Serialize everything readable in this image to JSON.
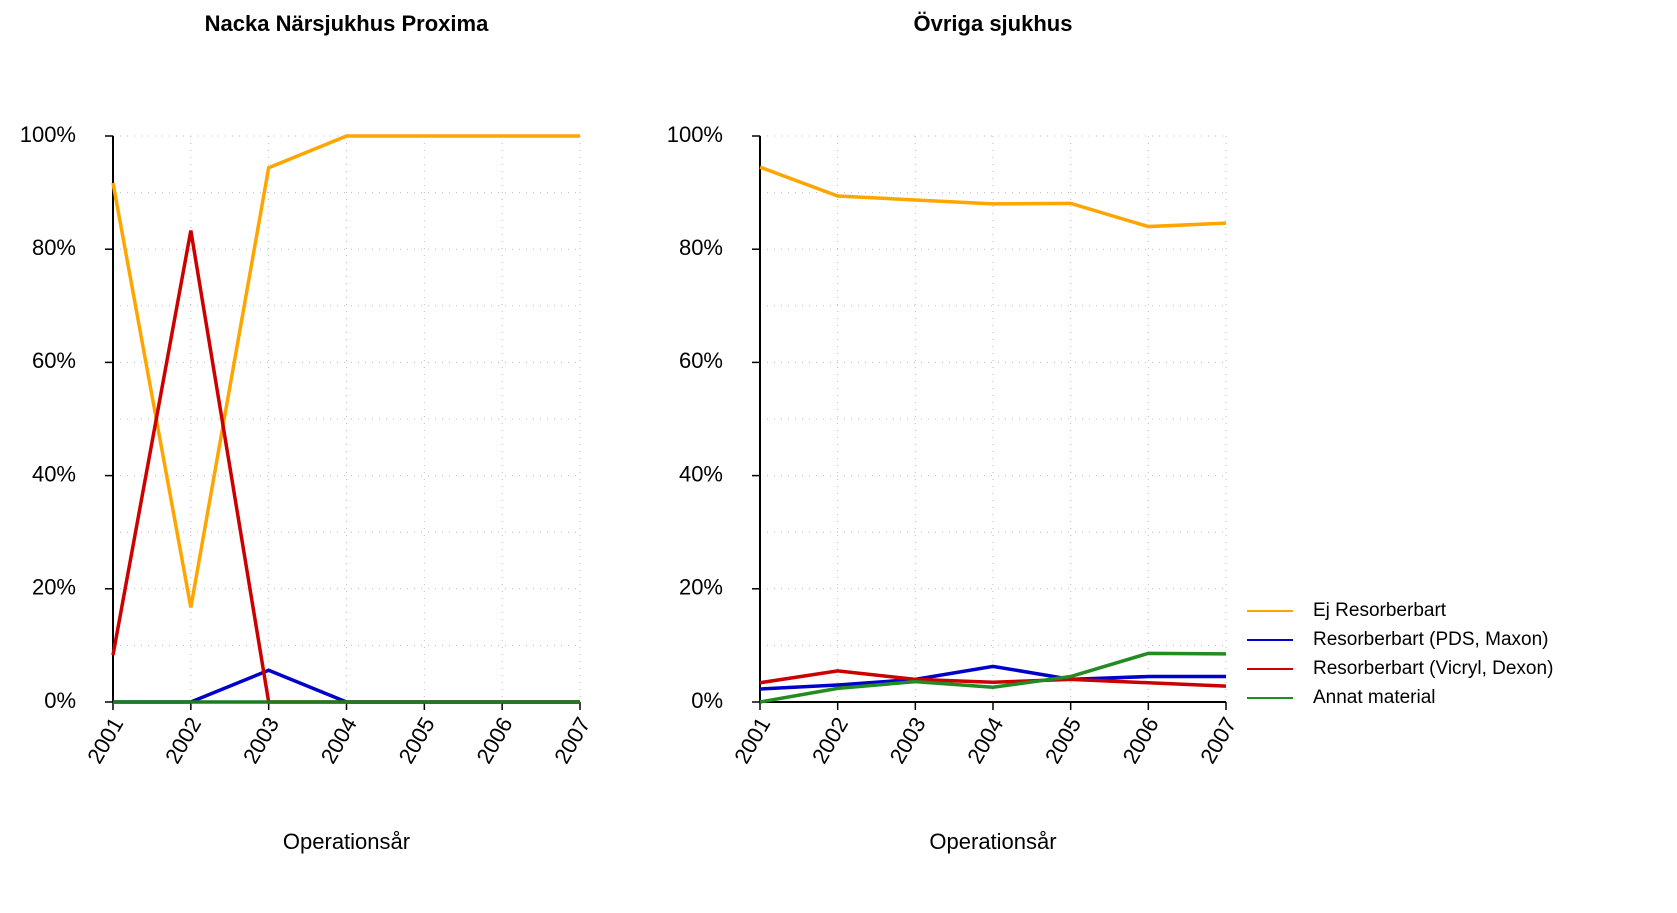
{
  "chart_data": [
    {
      "type": "line",
      "title": "Nacka Närsjukhus Proxima",
      "x_label": "Operationsår",
      "x": [
        2001,
        2002,
        2003,
        2004,
        2005,
        2006,
        2007
      ],
      "xlim": [
        2001,
        2007
      ],
      "xticks": [
        2001,
        2002,
        2003,
        2004,
        2005,
        2006,
        2007
      ],
      "ylim": [
        0,
        100
      ],
      "yticks": [
        {
          "value": 0,
          "label": "0%"
        },
        {
          "value": 20,
          "label": "20%"
        },
        {
          "value": 40,
          "label": "40%"
        },
        {
          "value": 60,
          "label": "60%"
        },
        {
          "value": 80,
          "label": "80%"
        },
        {
          "value": 100,
          "label": "100%"
        }
      ],
      "ygrid": [
        0,
        10,
        20,
        30,
        40,
        50,
        60,
        70,
        80,
        90,
        100
      ],
      "grid": true,
      "series": [
        {
          "color": "#FFA500",
          "values": [
            91.7,
            16.7,
            94.4,
            100,
            100,
            100,
            100
          ]
        },
        {
          "color": "#0000CD",
          "values": [
            0,
            0,
            5.6,
            0,
            0,
            0,
            0
          ]
        },
        {
          "color": "#CD0000",
          "values": [
            8.3,
            83.3,
            0,
            0,
            0,
            0,
            0
          ]
        },
        {
          "color": "#1E7B1E",
          "values": [
            0,
            0,
            0,
            0,
            0,
            0,
            0
          ]
        }
      ]
    },
    {
      "type": "line",
      "title": "Övriga sjukhus",
      "x_label": "Operationsår",
      "x": [
        2001,
        2002,
        2003,
        2004,
        2005,
        2006,
        2007
      ],
      "xlim": [
        2001,
        2007
      ],
      "xticks": [
        2001,
        2002,
        2003,
        2004,
        2005,
        2006,
        2007
      ],
      "ylim": [
        0,
        100
      ],
      "yticks": [
        {
          "value": 0,
          "label": "0%"
        },
        {
          "value": 20,
          "label": "20%"
        },
        {
          "value": 40,
          "label": "40%"
        },
        {
          "value": 60,
          "label": "60%"
        },
        {
          "value": 80,
          "label": "80%"
        },
        {
          "value": 100,
          "label": "100%"
        }
      ],
      "ygrid": [
        0,
        10,
        20,
        30,
        40,
        50,
        60,
        70,
        80,
        90,
        100
      ],
      "grid": true,
      "legend": "right",
      "series": [
        {
          "name": "Ej Resorberbart",
          "color": "#FFA500",
          "values": [
            94.5,
            89.4,
            88.7,
            88.0,
            88.1,
            84.0,
            84.6
          ]
        },
        {
          "name": "Resorberbart (PDS, Maxon)",
          "color": "#0000CD",
          "values": [
            2.3,
            3.0,
            4.0,
            6.3,
            4.0,
            4.5,
            4.5
          ]
        },
        {
          "name": "Resorberbart (Vicryl, Dexon)",
          "color": "#CD0000",
          "values": [
            3.4,
            5.5,
            4.0,
            3.5,
            4.0,
            3.4,
            2.8
          ]
        },
        {
          "name": "Annat material",
          "color": "#228B22",
          "values": [
            0,
            2.4,
            3.6,
            2.6,
            4.5,
            8.6,
            8.5
          ]
        }
      ]
    }
  ]
}
